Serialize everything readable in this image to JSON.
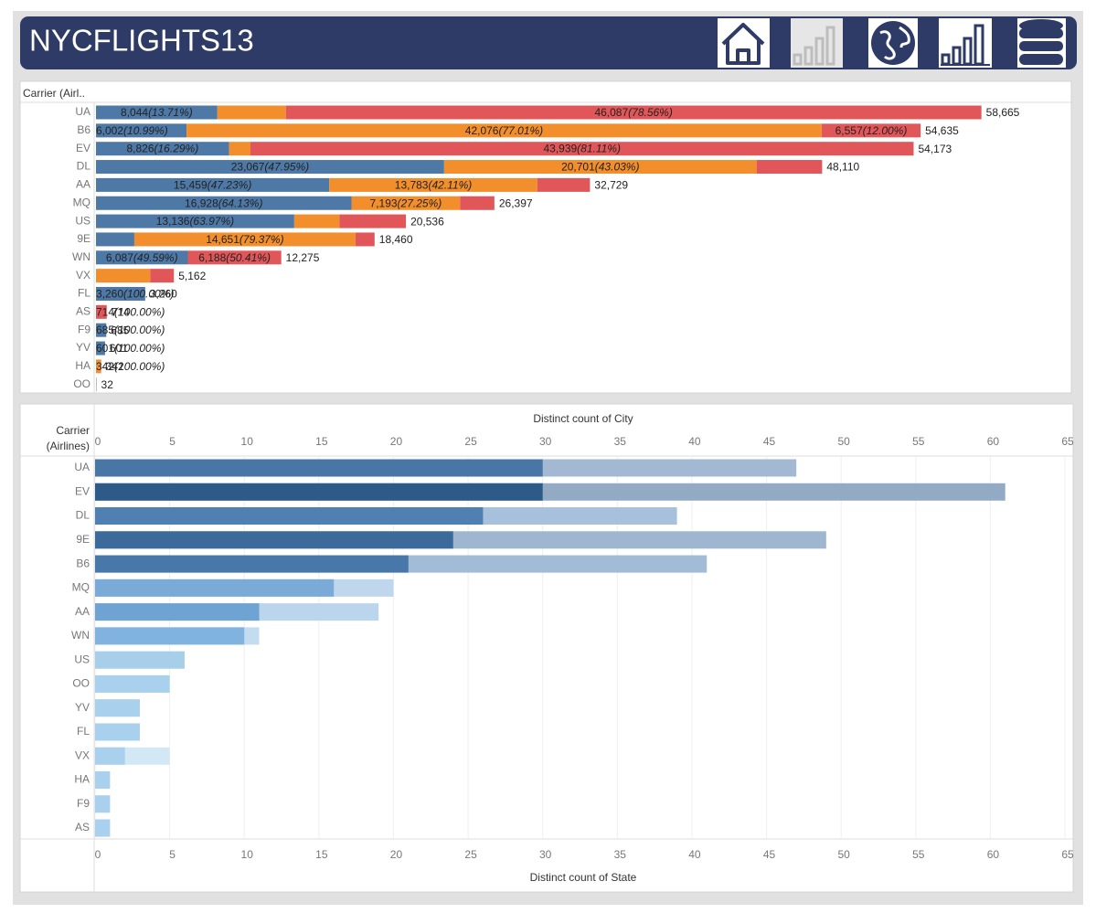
{
  "header": {
    "title": "NYCFLIGHTS13"
  },
  "chart_data": [
    {
      "type": "stacked-bar",
      "y_label": "Carrier (Airl..",
      "categories": [
        "UA",
        "B6",
        "EV",
        "DL",
        "AA",
        "MQ",
        "US",
        "9E",
        "WN",
        "VX",
        "FL",
        "AS",
        "F9",
        "YV",
        "HA",
        "OO"
      ],
      "xlim": [
        0,
        64500
      ],
      "series": [
        {
          "color": "#4e79a7",
          "values": [
            8044,
            6002,
            8826,
            23067,
            15459,
            16928,
            13136,
            2541,
            6087,
            null,
            3260,
            null,
            685,
            601,
            null,
            26
          ],
          "value_labels": [
            "8,044",
            "6,002",
            "8,826",
            "23,067",
            "15,459",
            "16,928",
            "13,136",
            null,
            "6,087",
            null,
            "3,260",
            null,
            "685",
            "601",
            null,
            null
          ],
          "share_labels": [
            "(13.71%)",
            "(10.99%)",
            "(16.29%)",
            "(47.95%)",
            "(47.23%)",
            "(64.13%)",
            "(63.97%)",
            null,
            "(49.59%)",
            null,
            "(100.00%)",
            null,
            "(100.00%)",
            "(100.00%)",
            null,
            null
          ]
        },
        {
          "color": "#f28e2b",
          "values": [
            4534,
            42076,
            1408,
            20701,
            13783,
            7193,
            2995,
            14651,
            null,
            3596,
            null,
            null,
            null,
            null,
            342,
            null
          ],
          "value_labels": [
            null,
            "42,076",
            null,
            "20,701",
            "13,783",
            "7,193",
            null,
            "14,651",
            null,
            null,
            null,
            null,
            null,
            null,
            "342",
            null
          ],
          "share_labels": [
            null,
            "(77.01%)",
            null,
            "(43.03%)",
            "(42.11%)",
            "(27.25%)",
            null,
            "(79.37%)",
            null,
            null,
            null,
            null,
            null,
            null,
            "(100.00%)",
            null
          ]
        },
        {
          "color": "#e15759",
          "values": [
            46087,
            6557,
            43939,
            4342,
            3487,
            2276,
            4405,
            1268,
            6188,
            1566,
            null,
            714,
            null,
            null,
            null,
            6
          ],
          "value_labels": [
            "46,087",
            "6,557",
            "43,939",
            null,
            null,
            null,
            null,
            null,
            "6,188",
            null,
            null,
            "714",
            null,
            null,
            null,
            null
          ],
          "share_labels": [
            "(78.56%)",
            "(12.00%)",
            "(81.11%)",
            null,
            null,
            null,
            null,
            null,
            "(50.41%)",
            null,
            null,
            "(100.00%)",
            null,
            null,
            null,
            null
          ]
        }
      ],
      "totals": [
        58665,
        54635,
        54173,
        48110,
        32729,
        26397,
        20536,
        18460,
        12275,
        5162,
        3260,
        714,
        685,
        601,
        342,
        32
      ],
      "total_labels": [
        "58,665",
        "54,635",
        "54,173",
        "48,110",
        "32,729",
        "26,397",
        "20,536",
        "18,460",
        "12,275",
        "5,162",
        "3,260",
        "714",
        "685",
        "601",
        "342",
        "32"
      ]
    },
    {
      "type": "overlay-bar",
      "y_label": "Carrier (Airlines)",
      "x_label": "Distinct count of State",
      "x2_label": "Distinct count of City",
      "categories": [
        "UA",
        "EV",
        "DL",
        "9E",
        "B6",
        "MQ",
        "AA",
        "WN",
        "US",
        "OO",
        "YV",
        "FL",
        "VX",
        "HA",
        "F9",
        "AS"
      ],
      "xlim": [
        0,
        65
      ],
      "xticks": [
        0,
        5,
        10,
        15,
        20,
        25,
        30,
        35,
        40,
        45,
        50,
        55,
        60,
        65
      ],
      "x2lim": [
        0,
        65
      ],
      "x2ticks": [
        0,
        5,
        10,
        15,
        20,
        25,
        30,
        35,
        40,
        45,
        50,
        55,
        60,
        65
      ],
      "grid": true,
      "series": [
        {
          "axis": "x2",
          "colors": [
            "#a3b9d3",
            "#93aac4",
            "#a7c0dc",
            "#9fb6d1",
            "#a2bbd6",
            "#bfd7ec",
            "#bbd5ec",
            "#c4dcf0",
            "#d3e8f5",
            "#d3e8f5",
            "#d3e8f5",
            "#d3e8f5",
            "#d3e8f5",
            "#d3e8f5",
            "#d3e8f5",
            "#d3e8f5"
          ],
          "values": [
            47,
            61,
            39,
            49,
            41,
            20,
            19,
            11,
            6,
            5,
            3,
            3,
            5,
            1,
            1,
            1
          ]
        },
        {
          "axis": "x",
          "colors": [
            "#4a76a6",
            "#2d5a87",
            "#4f80b1",
            "#3c6b9b",
            "#4878a9",
            "#79aad8",
            "#6ea3d2",
            "#80b3df",
            "#a7cfea",
            "#a9d0ec",
            "#a9d0ec",
            "#a9d0ec",
            "#a9d0ec",
            "#a9d0ec",
            "#a9d0ec",
            "#a9d0ec"
          ],
          "values": [
            30,
            30,
            26,
            24,
            21,
            16,
            11,
            10,
            6,
            5,
            3,
            3,
            2,
            1,
            1,
            1
          ]
        }
      ]
    }
  ]
}
